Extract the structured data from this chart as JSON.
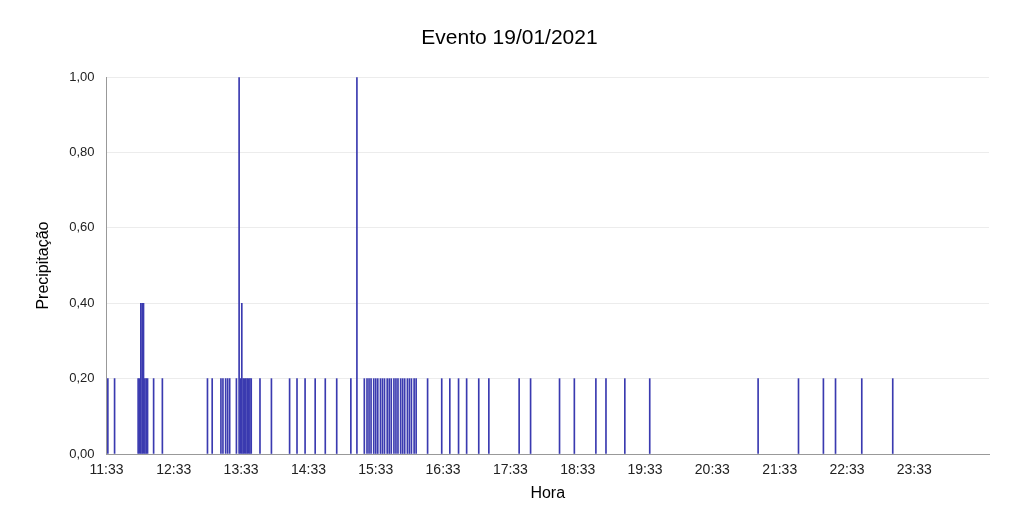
{
  "chart_data": {
    "type": "bar",
    "title": "Evento 19/01/2021",
    "xlabel": "Hora",
    "ylabel": "Precipitação",
    "x": [
      11.57,
      11.67,
      12.02,
      12.04,
      12.06,
      12.08,
      12.1,
      12.12,
      12.14,
      12.16,
      12.25,
      12.38,
      13.05,
      13.12,
      13.25,
      13.28,
      13.32,
      13.35,
      13.38,
      13.48,
      13.52,
      13.54,
      13.56,
      13.58,
      13.6,
      13.62,
      13.64,
      13.66,
      13.68,
      13.7,
      13.83,
      14.0,
      14.27,
      14.38,
      14.5,
      14.65,
      14.8,
      14.97,
      15.18,
      15.27,
      15.38,
      15.42,
      15.45,
      15.48,
      15.52,
      15.55,
      15.58,
      15.62,
      15.65,
      15.68,
      15.72,
      15.75,
      15.78,
      15.82,
      15.85,
      15.88,
      15.92,
      15.95,
      15.98,
      16.02,
      16.05,
      16.08,
      16.12,
      16.15,
      16.32,
      16.53,
      16.65,
      16.78,
      16.9,
      17.08,
      17.23,
      17.68,
      17.85,
      18.28,
      18.5,
      18.82,
      18.97,
      19.25,
      19.62,
      21.23,
      21.83,
      22.2,
      22.38,
      22.77,
      23.23
    ],
    "series": [
      {
        "color": "#3a3ab0",
        "values": [
          0.2,
          0.2,
          0.2,
          0.2,
          0.4,
          0.4,
          0.4,
          0.2,
          0.2,
          0.2,
          0.2,
          0.2,
          0.2,
          0.2,
          0.2,
          0.2,
          0.2,
          0.2,
          0.2,
          0.2,
          1.0,
          0.2,
          0.4,
          0.2,
          0.2,
          0.2,
          0.2,
          0.2,
          0.2,
          0.2,
          0.2,
          0.2,
          0.2,
          0.2,
          0.2,
          0.2,
          0.2,
          0.2,
          0.2,
          1.0,
          0.2,
          0.2,
          0.2,
          0.2,
          0.2,
          0.2,
          0.2,
          0.2,
          0.2,
          0.2,
          0.2,
          0.2,
          0.2,
          0.2,
          0.2,
          0.2,
          0.2,
          0.2,
          0.2,
          0.2,
          0.2,
          0.2,
          0.2,
          0.2,
          0.2,
          0.2,
          0.2,
          0.2,
          0.2,
          0.2,
          0.2,
          0.2,
          0.2,
          0.2,
          0.2,
          0.2,
          0.2,
          0.2,
          0.2,
          0.2,
          0.2,
          0.2,
          0.2,
          0.2,
          0.2
        ]
      }
    ],
    "xlim": [
      11.55,
      24.66
    ],
    "xticks": [
      {
        "value": 11.55,
        "label": "11:33"
      },
      {
        "value": 12.55,
        "label": "12:33"
      },
      {
        "value": 13.55,
        "label": "13:33"
      },
      {
        "value": 14.55,
        "label": "14:33"
      },
      {
        "value": 15.55,
        "label": "15:33"
      },
      {
        "value": 16.55,
        "label": "16:33"
      },
      {
        "value": 17.55,
        "label": "17:33"
      },
      {
        "value": 18.55,
        "label": "18:33"
      },
      {
        "value": 19.55,
        "label": "19:33"
      },
      {
        "value": 20.55,
        "label": "20:33"
      },
      {
        "value": 21.55,
        "label": "21:33"
      },
      {
        "value": 22.55,
        "label": "22:33"
      },
      {
        "value": 23.55,
        "label": "23:33"
      }
    ],
    "ylim": [
      0,
      1
    ],
    "yticks": [
      {
        "value": 0,
        "label": "0,00"
      },
      {
        "value": 0.2,
        "label": "0,20"
      },
      {
        "value": 0.4,
        "label": "0,40"
      },
      {
        "value": 0.6,
        "label": "0,60"
      },
      {
        "value": 0.8,
        "label": "0,80"
      },
      {
        "value": 1,
        "label": "1,00"
      }
    ],
    "grid": "y",
    "legend": false
  }
}
